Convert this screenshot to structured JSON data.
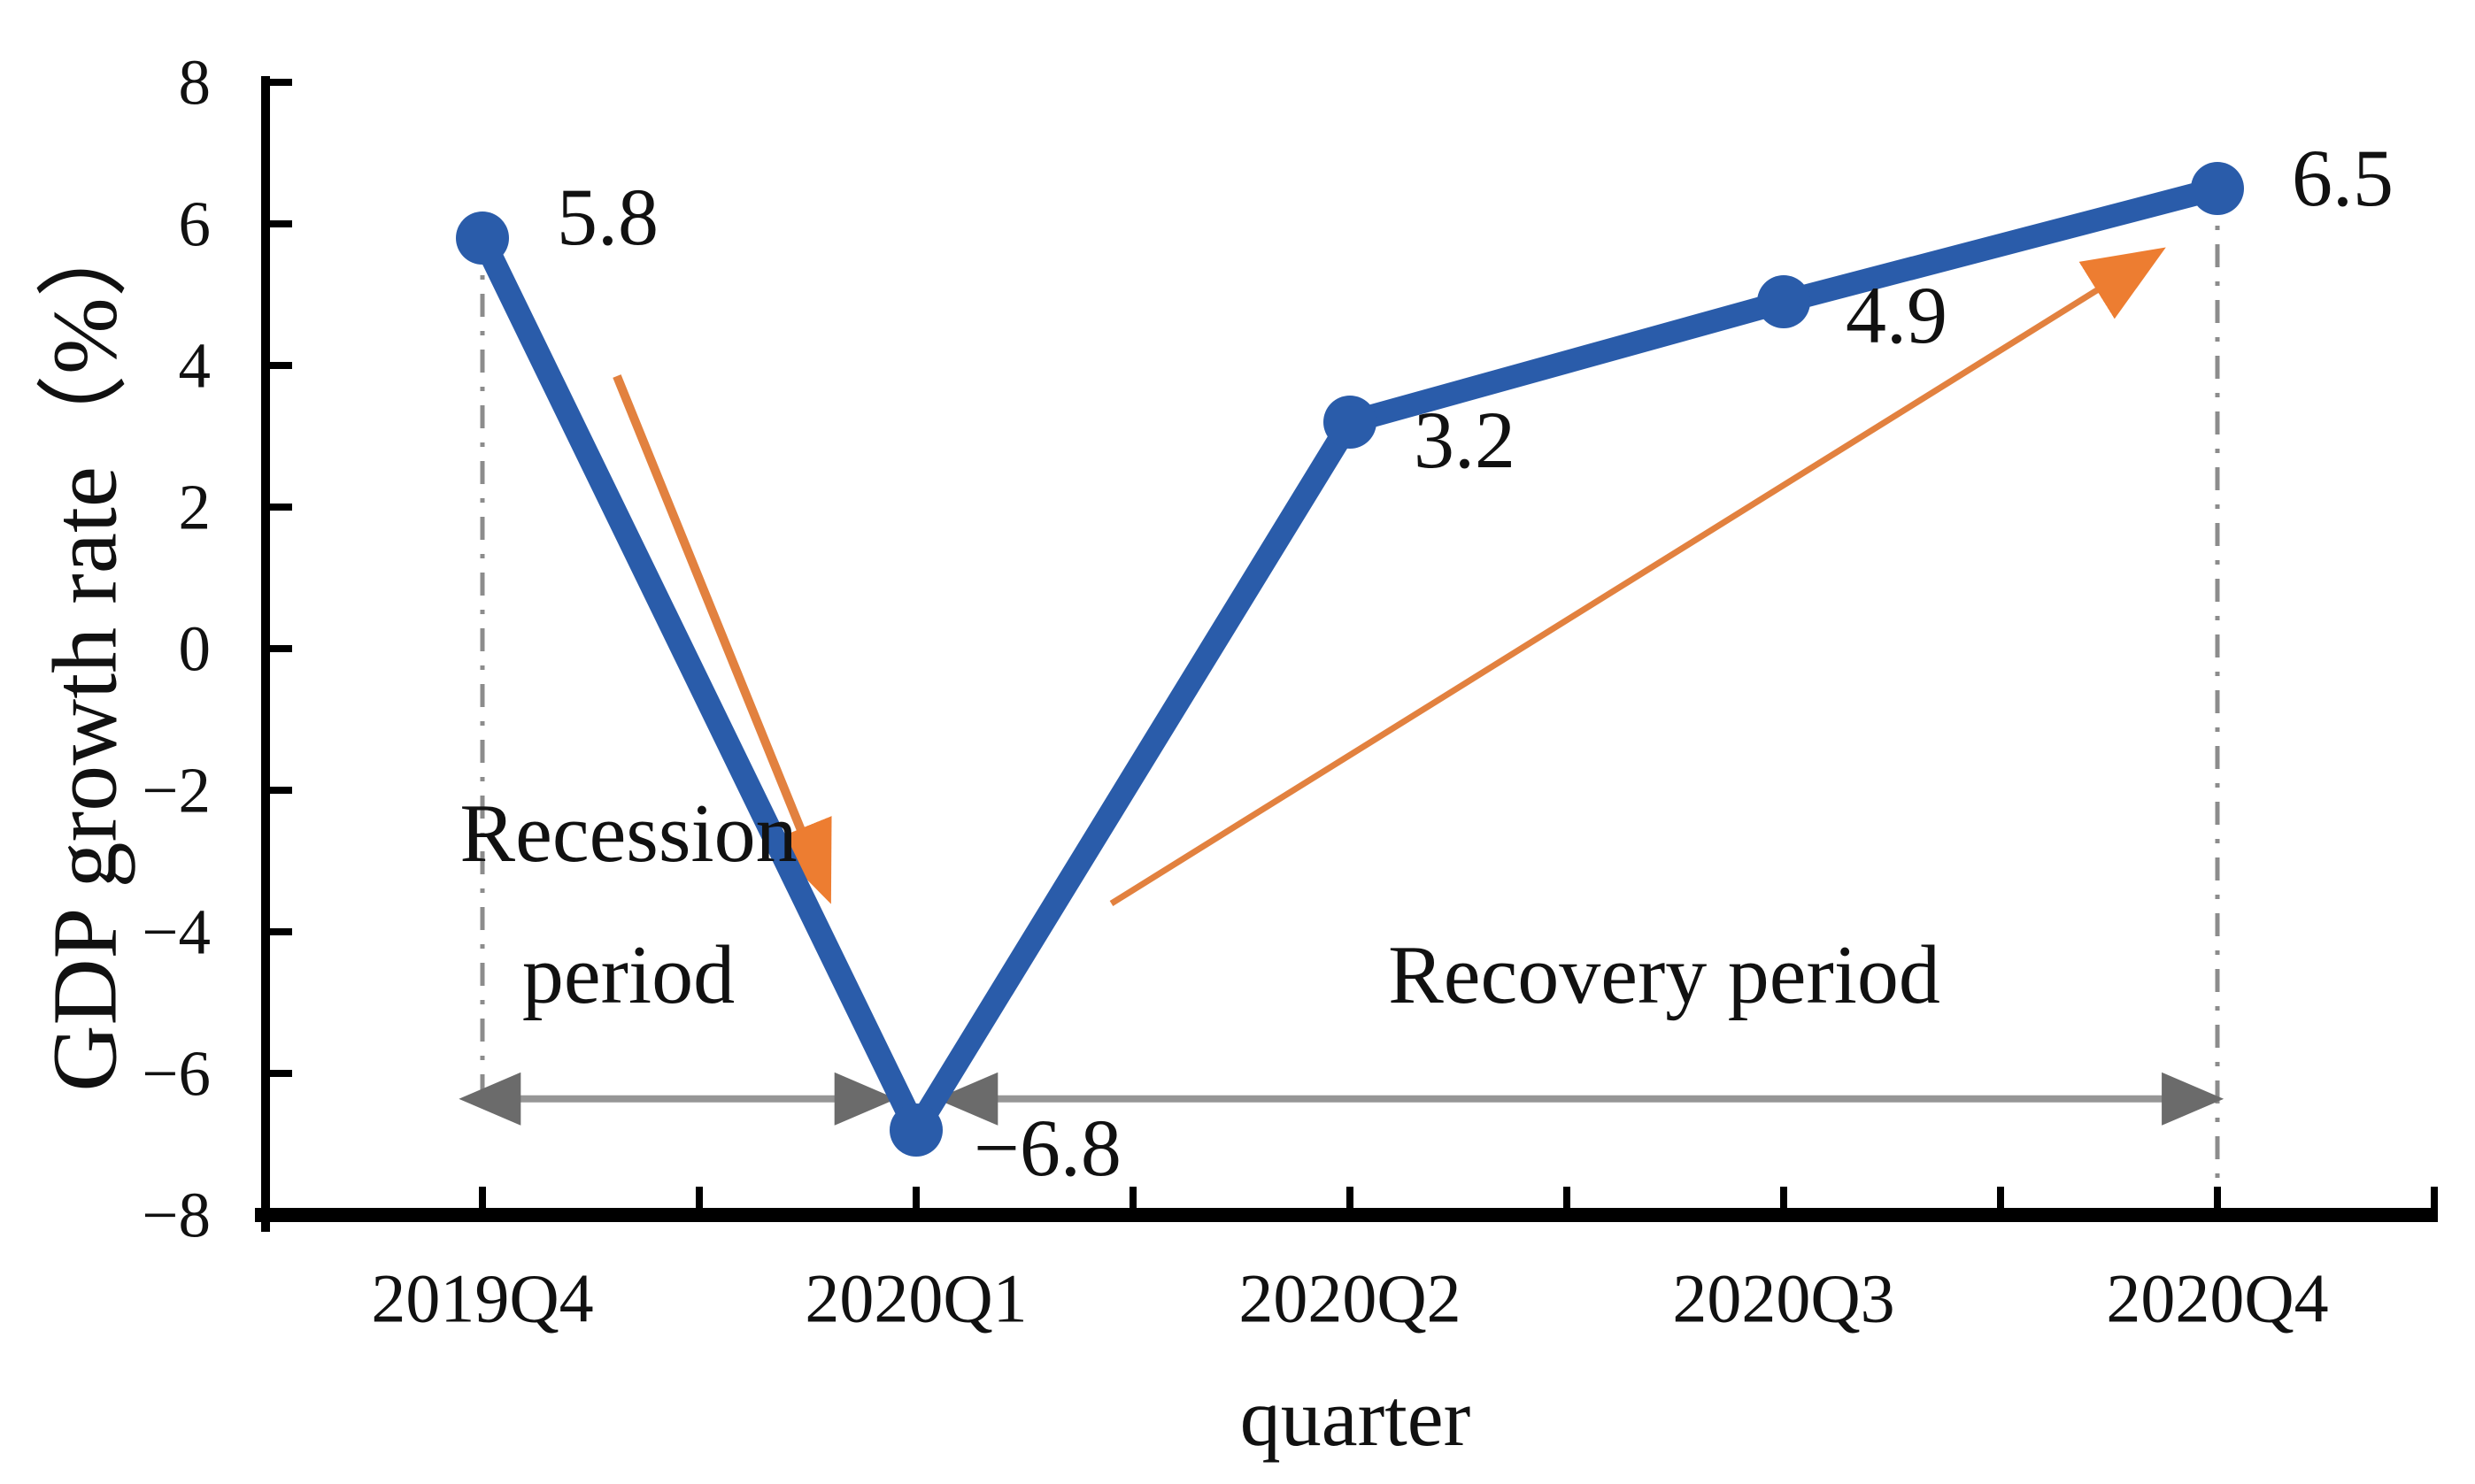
{
  "page": {
    "background": "#ffffff"
  },
  "chart_data": {
    "type": "line",
    "title": "",
    "xlabel": "quarter",
    "ylabel": "GDP growth rate（%）",
    "categories": [
      "2019Q4",
      "2020Q1",
      "2020Q2",
      "2020Q3",
      "2020Q4"
    ],
    "series": [
      {
        "name": "GDP growth rate",
        "color": "#2a5caa",
        "marker": "circle",
        "values": [
          5.8,
          -6.8,
          3.2,
          4.9,
          6.5
        ]
      }
    ],
    "point_labels": [
      "5.8",
      "−6.8",
      "3.2",
      "4.9",
      "6.5"
    ],
    "ylim": [
      -8,
      8
    ],
    "y_ticks": [
      {
        "value": 8,
        "label": "8"
      },
      {
        "value": 6,
        "label": "6"
      },
      {
        "value": 4,
        "label": "4"
      },
      {
        "value": 2,
        "label": "2"
      },
      {
        "value": 0,
        "label": "0"
      },
      {
        "value": -2,
        "label": "−2"
      },
      {
        "value": -4,
        "label": "−4"
      },
      {
        "value": -6,
        "label": "−6"
      },
      {
        "value": -8,
        "label": "−8"
      }
    ],
    "grid": false,
    "legend_position": "none"
  },
  "annotations": {
    "recession_label": {
      "line1": "Recession",
      "line2": "period"
    },
    "recovery_label": {
      "text": "Recovery period"
    },
    "trend_arrows": [
      {
        "name": "recession-trend-arrow",
        "color": "#e2813f",
        "head_color": "#ed7d31",
        "width": 10,
        "from": {
          "cat": 0.31,
          "value": 3.85
        },
        "to": {
          "cat": 0.79,
          "value": -3.4
        }
      },
      {
        "name": "recovery-trend-arrow",
        "color": "#e2813f",
        "head_color": "#ed7d31",
        "width": 7,
        "from": {
          "cat": 1.45,
          "value": -3.6
        },
        "to": {
          "cat": 3.85,
          "value": 5.55
        }
      }
    ],
    "period_spans": [
      {
        "name": "recession-span",
        "color": "#969696",
        "head_color": "#6b6b6b",
        "from_cat": -0.03,
        "to_cat": 0.93,
        "value": -6.36
      },
      {
        "name": "recovery-span",
        "color": "#969696",
        "head_color": "#6b6b6b",
        "from_cat": 1.07,
        "to_cat": 3.99,
        "value": -6.36
      }
    ],
    "guide_lines": [
      {
        "name": "guide-line-2019Q4",
        "cat": 0,
        "from_value": 5.8,
        "to_value": -6.4
      },
      {
        "name": "guide-line-2020Q4",
        "cat": 4,
        "from_value": 6.5,
        "to_value": -7.75
      }
    ],
    "guide_color": "#8c8c8c"
  }
}
